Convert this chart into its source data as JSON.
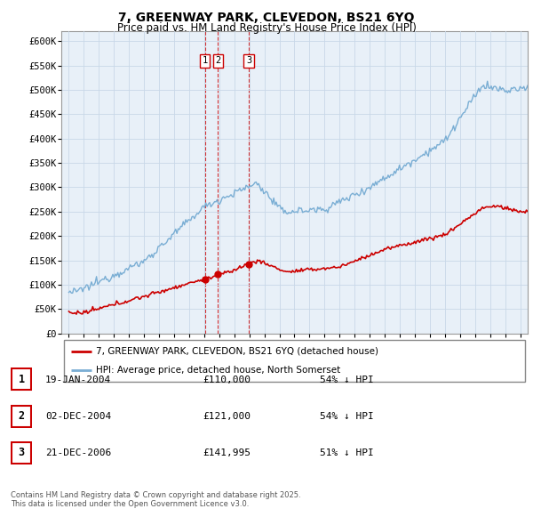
{
  "title": "7, GREENWAY PARK, CLEVEDON, BS21 6YQ",
  "subtitle": "Price paid vs. HM Land Registry's House Price Index (HPI)",
  "ylim": [
    0,
    620000
  ],
  "yticks": [
    0,
    50000,
    100000,
    150000,
    200000,
    250000,
    300000,
    350000,
    400000,
    450000,
    500000,
    550000,
    600000
  ],
  "ytick_labels": [
    "£0",
    "£50K",
    "£100K",
    "£150K",
    "£200K",
    "£250K",
    "£300K",
    "£350K",
    "£400K",
    "£450K",
    "£500K",
    "£550K",
    "£600K"
  ],
  "xlim_start": 1994.5,
  "xlim_end": 2025.5,
  "hpi_color": "#7aaed4",
  "price_color": "#cc0000",
  "transaction_color": "#cc0000",
  "plot_bg_color": "#e8f0f8",
  "grid_color": "#c8d8e8",
  "transactions": [
    {
      "year": 2004.05,
      "price": 110000,
      "label": "1",
      "date": "19-JAN-2004",
      "pct": "54%"
    },
    {
      "year": 2004.92,
      "price": 121000,
      "label": "2",
      "date": "02-DEC-2004",
      "pct": "54%"
    },
    {
      "year": 2006.97,
      "price": 141995,
      "label": "3",
      "date": "21-DEC-2006",
      "pct": "51%"
    }
  ],
  "legend_line1": "7, GREENWAY PARK, CLEVEDON, BS21 6YQ (detached house)",
  "legend_line2": "HPI: Average price, detached house, North Somerset",
  "footer_line1": "Contains HM Land Registry data © Crown copyright and database right 2025.",
  "footer_line2": "This data is licensed under the Open Government Licence v3.0.",
  "background_color": "#ffffff"
}
